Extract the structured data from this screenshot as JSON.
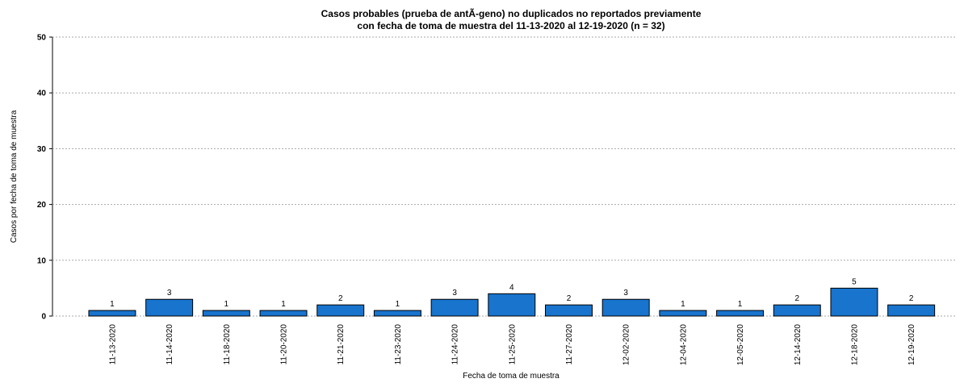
{
  "chart_data": {
    "type": "bar",
    "title": [
      "Casos probables (prueba de antÃ-geno) no duplicados no reportados previamente",
      "con fecha de toma de muestra del 11-13-2020 al 12-19-2020 (n = 32)"
    ],
    "x_label": "Fecha de toma de muestra",
    "y_label": "Casos por fecha de toma de muestra",
    "categories": [
      "11-13-2020",
      "11-14-2020",
      "11-18-2020",
      "11-20-2020",
      "11-21-2020",
      "11-23-2020",
      "11-24-2020",
      "11-25-2020",
      "11-27-2020",
      "12-02-2020",
      "12-04-2020",
      "12-05-2020",
      "12-14-2020",
      "12-18-2020",
      "12-19-2020"
    ],
    "values": [
      1,
      3,
      1,
      1,
      2,
      1,
      3,
      4,
      2,
      3,
      1,
      1,
      2,
      5,
      2
    ],
    "color": "#1874cd",
    "ylim": [
      0,
      50
    ],
    "yticks": [
      0,
      10,
      20,
      30,
      40,
      50
    ],
    "grid": true
  }
}
